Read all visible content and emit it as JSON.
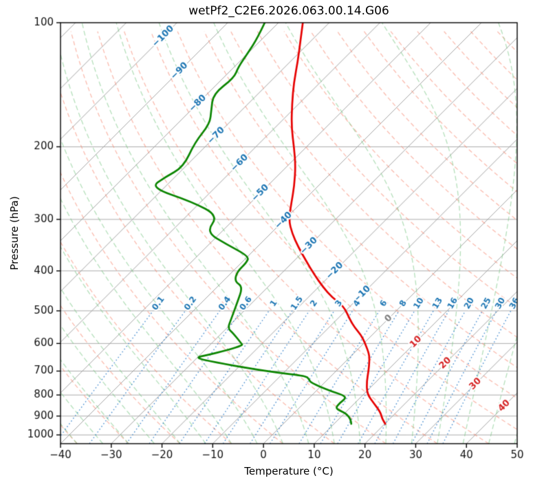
{
  "title": "wetPf2_C2E6.2026.063.00.14.G06",
  "axes": {
    "xlabel": "Temperature (°C)",
    "ylabel": "Pressure (hPa)",
    "x_ticks": [
      -40,
      -30,
      -20,
      -10,
      0,
      10,
      20,
      30,
      40,
      50
    ],
    "y_ticks": [
      100,
      200,
      300,
      400,
      500,
      600,
      700,
      800,
      900,
      1000
    ]
  },
  "chart_data": {
    "type": "line",
    "variant": "skew-t-log-p-sounding",
    "title": "wetPf2_C2E6.2026.063.00.14.G06",
    "xlabel": "Temperature (°C)",
    "ylabel": "Pressure (hPa)",
    "xlim_c": [
      -40,
      50
    ],
    "plim_hpa": [
      1050,
      100
    ],
    "skew_angle_deg": 45,
    "grid": {
      "pressure_lines_hpa": [
        200,
        300,
        400,
        500,
        600,
        700,
        800,
        900,
        1000
      ],
      "isotherms_c": {
        "start": -150,
        "end": 50,
        "step": 10
      },
      "dry_adiabats_theta_c": {
        "start": -40,
        "end": 200,
        "step": 10
      },
      "moist_adiabats_thetaw_c": {
        "start": -60,
        "end": 45,
        "step": 5
      },
      "mixing_ratio_g_per_kg": [
        0.1,
        0.2,
        0.4,
        0.6,
        1,
        1.5,
        2,
        3,
        4,
        6,
        8,
        10,
        13,
        16,
        20,
        25,
        30,
        36
      ],
      "mixing_ratio_top_hpa": 500
    },
    "isotherm_labels": [
      {
        "t": -100,
        "p": 108
      },
      {
        "t": -90,
        "p": 131
      },
      {
        "t": -80,
        "p": 157
      },
      {
        "t": -70,
        "p": 188
      },
      {
        "t": -60,
        "p": 219
      },
      {
        "t": -50,
        "p": 259
      },
      {
        "t": -40,
        "p": 302
      },
      {
        "t": -30,
        "p": 348
      },
      {
        "t": -20,
        "p": 400
      },
      {
        "t": -10,
        "p": 456
      },
      {
        "t": 0,
        "p": 522
      },
      {
        "t": 10,
        "p": 595
      },
      {
        "t": 20,
        "p": 670
      },
      {
        "t": 30,
        "p": 752
      },
      {
        "t": 40,
        "p": 850
      }
    ],
    "mixing_labels_at_hpa": 480,
    "series": [
      {
        "name": "temperature",
        "color": "#e60000",
        "points_p_t": [
          [
            100,
            -75.2
          ],
          [
            111,
            -72.0
          ],
          [
            124,
            -68.6
          ],
          [
            140,
            -65.1
          ],
          [
            157,
            -61.4
          ],
          [
            179,
            -56.9
          ],
          [
            201,
            -52.3
          ],
          [
            222,
            -48.5
          ],
          [
            249,
            -44.7
          ],
          [
            274,
            -41.9
          ],
          [
            301,
            -39.1
          ],
          [
            325,
            -35.7
          ],
          [
            350,
            -31.9
          ],
          [
            377,
            -27.8
          ],
          [
            407,
            -23.5
          ],
          [
            438,
            -19.1
          ],
          [
            464,
            -15.3
          ],
          [
            487,
            -11.3
          ],
          [
            527,
            -7.2
          ],
          [
            549,
            -4.9
          ],
          [
            572,
            -2.2
          ],
          [
            600,
            0.3
          ],
          [
            637,
            3.2
          ],
          [
            662,
            4.6
          ],
          [
            700,
            6.4
          ],
          [
            742,
            8.1
          ],
          [
            795,
            10.6
          ],
          [
            838,
            13.8
          ],
          [
            880,
            16.8
          ],
          [
            912,
            18.4
          ],
          [
            940,
            20.1
          ]
        ]
      },
      {
        "name": "dewpoint",
        "color": "#0b8500",
        "points_p_t": [
          [
            100,
            -82.7
          ],
          [
            109,
            -81.1
          ],
          [
            118,
            -80.1
          ],
          [
            128,
            -79.2
          ],
          [
            136,
            -77.9
          ],
          [
            149,
            -78.8
          ],
          [
            163,
            -76.0
          ],
          [
            176,
            -73.6
          ],
          [
            195,
            -72.9
          ],
          [
            224,
            -70.3
          ],
          [
            237,
            -71.9
          ],
          [
            251,
            -72.8
          ],
          [
            272,
            -61.7
          ],
          [
            294,
            -53.8
          ],
          [
            322,
            -53.0
          ],
          [
            345,
            -46.5
          ],
          [
            369,
            -39.7
          ],
          [
            383,
            -39.0
          ],
          [
            401,
            -39.1
          ],
          [
            424,
            -37.7
          ],
          [
            437,
            -35.0
          ],
          [
            477,
            -33.0
          ],
          [
            524,
            -30.9
          ],
          [
            551,
            -29.8
          ],
          [
            566,
            -27.8
          ],
          [
            600,
            -24.1
          ],
          [
            606,
            -23.5
          ],
          [
            623,
            -25.5
          ],
          [
            640,
            -28.6
          ],
          [
            650,
            -30.5
          ],
          [
            667,
            -25.4
          ],
          [
            690,
            -17.4
          ],
          [
            706,
            -11.5
          ],
          [
            719,
            -5.0
          ],
          [
            733,
            -3.7
          ],
          [
            747,
            -2.7
          ],
          [
            781,
            2.6
          ],
          [
            801,
            6.2
          ],
          [
            815,
            7.3
          ],
          [
            838,
            7.0
          ],
          [
            861,
            7.2
          ],
          [
            875,
            8.8
          ],
          [
            890,
            10.6
          ],
          [
            917,
            12.4
          ],
          [
            940,
            13.4
          ]
        ]
      }
    ],
    "style": {
      "isotherm_color": "#a2a2a2",
      "pressure_line_color": "#ababab",
      "dry_adiabat_color": "rgba(246,132,108,0.55)",
      "moist_adiabat_color": "rgba(118,196,130,0.55)",
      "mixing_color": "rgba(42,123,200,0.85)",
      "cold_label_color": "#1f77b4",
      "zero_label_color": "#808080",
      "warm_label_color": "#d62728",
      "tick_label_color": "#111111",
      "spine_color": "#000000"
    }
  }
}
